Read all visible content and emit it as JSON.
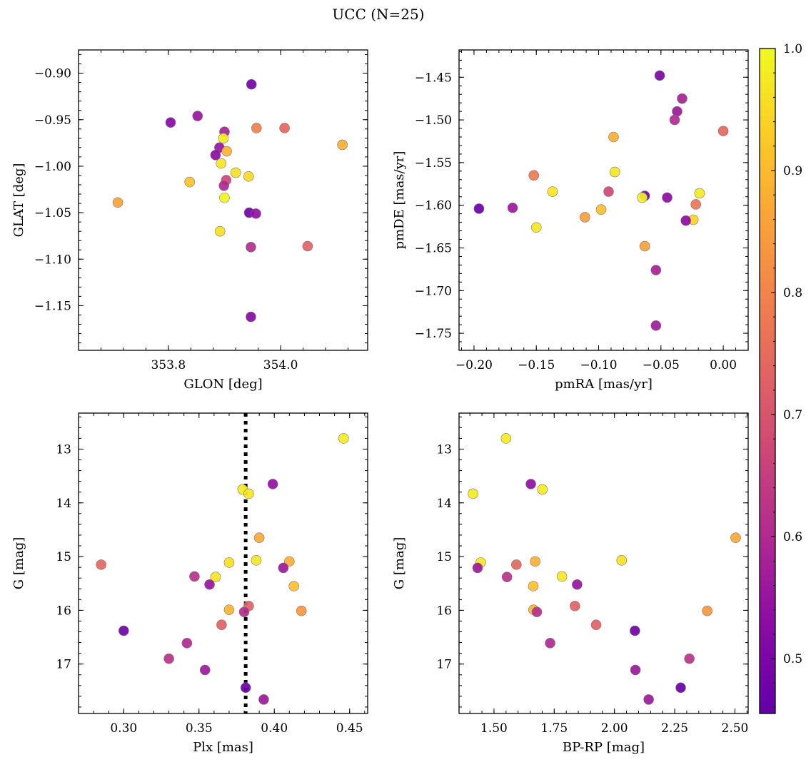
{
  "figure_title": "UCC (N=25)",
  "colorbar": {
    "range": [
      0.455,
      1.0
    ],
    "ticks": [
      0.5,
      0.6,
      0.7,
      0.8,
      0.9,
      1.0
    ],
    "tick_labels": [
      "0.5",
      "0.6",
      "0.7",
      "0.8",
      "0.9",
      "1.0"
    ],
    "colormap": "plasma"
  },
  "chart_data": [
    {
      "type": "scatter",
      "id": "glon-glat",
      "xlabel": "GLON [deg]",
      "ylabel": "GLAT [deg]",
      "xlim": [
        353.64,
        354.155
      ],
      "ylim": [
        -1.198,
        -0.875
      ],
      "invert_y": false,
      "xticks": [
        353.8,
        354.0
      ],
      "xtick_labels": [
        "353.8",
        "354.0"
      ],
      "yticks": [
        -0.9,
        -0.95,
        -1.0,
        -1.05,
        -1.1,
        -1.15
      ],
      "ytick_labels": [
        "−0.90",
        "−0.95",
        "−1.00",
        "−1.05",
        "−1.10",
        "−1.15"
      ],
      "x": [
        353.948,
        353.804,
        353.852,
        353.9,
        353.957,
        354.007,
        354.11,
        353.898,
        353.891,
        353.904,
        353.884,
        353.92,
        353.894,
        353.903,
        353.943,
        353.838,
        353.899,
        353.9,
        353.71,
        353.944,
        353.956,
        353.892,
        353.947,
        354.048,
        353.947
      ],
      "y": [
        -0.912,
        -0.953,
        -0.946,
        -0.963,
        -0.959,
        -0.959,
        -0.977,
        -0.97,
        -0.98,
        -0.984,
        -0.988,
        -1.007,
        -0.997,
        -1.015,
        -1.011,
        -1.017,
        -1.021,
        -1.034,
        -1.039,
        -1.05,
        -1.051,
        -1.07,
        -1.087,
        -1.086,
        -1.162
      ],
      "c": [
        0.48,
        0.52,
        0.55,
        0.58,
        0.79,
        0.74,
        0.88,
        0.98,
        0.55,
        0.89,
        0.53,
        0.96,
        0.97,
        0.67,
        0.95,
        0.92,
        0.6,
        0.99,
        0.86,
        0.48,
        0.54,
        0.96,
        0.61,
        0.73,
        0.52
      ]
    },
    {
      "type": "scatter",
      "id": "pmra-pmde",
      "xlabel": "pmRA [mas/yr]",
      "ylabel": "pmDE [mas/yr]",
      "xlim": [
        -0.212,
        0.02
      ],
      "ylim": [
        -1.77,
        -1.418
      ],
      "invert_y": false,
      "xticks": [
        -0.2,
        -0.15,
        -0.1,
        -0.05,
        0.0
      ],
      "xtick_labels": [
        "−0.20",
        "−0.15",
        "−0.10",
        "−0.05",
        "0.00"
      ],
      "yticks": [
        -1.45,
        -1.5,
        -1.55,
        -1.6,
        -1.65,
        -1.7,
        -1.75
      ],
      "ytick_labels": [
        "−1.45",
        "−1.50",
        "−1.55",
        "−1.60",
        "−1.65",
        "−1.70",
        "−1.75"
      ],
      "x": [
        -0.051,
        -0.033,
        -0.037,
        -0.039,
        0.0,
        -0.088,
        -0.087,
        -0.152,
        -0.137,
        -0.092,
        -0.019,
        -0.063,
        -0.065,
        -0.045,
        -0.196,
        -0.169,
        -0.098,
        -0.022,
        -0.111,
        -0.024,
        -0.03,
        -0.15,
        -0.063,
        -0.054,
        -0.054
      ],
      "y": [
        -1.448,
        -1.475,
        -1.49,
        -1.5,
        -1.513,
        -1.52,
        -1.561,
        -1.565,
        -1.584,
        -1.584,
        -1.586,
        -1.589,
        -1.591,
        -1.591,
        -1.604,
        -1.603,
        -1.605,
        -1.599,
        -1.614,
        -1.617,
        -1.618,
        -1.626,
        -1.648,
        -1.676,
        -1.741
      ],
      "c": [
        0.5,
        0.58,
        0.56,
        0.6,
        0.74,
        0.88,
        0.97,
        0.78,
        0.97,
        0.67,
        0.98,
        0.48,
        0.99,
        0.53,
        0.47,
        0.56,
        0.91,
        0.77,
        0.85,
        0.94,
        0.53,
        0.97,
        0.86,
        0.58,
        0.57
      ]
    },
    {
      "type": "scatter",
      "id": "plx-g",
      "xlabel": "Plx [mas]",
      "ylabel": "G [mag]",
      "xlim": [
        0.27,
        0.462
      ],
      "ylim": [
        12.33,
        17.92
      ],
      "invert_y": true,
      "xticks": [
        0.3,
        0.35,
        0.4,
        0.45
      ],
      "xtick_labels": [
        "0.30",
        "0.35",
        "0.40",
        "0.45"
      ],
      "yticks": [
        13,
        14,
        15,
        16,
        17
      ],
      "ytick_labels": [
        "13",
        "14",
        "15",
        "16",
        "17"
      ],
      "vline": {
        "x": 0.381,
        "style": "dotted"
      },
      "x": [
        0.446,
        0.379,
        0.383,
        0.399,
        0.39,
        0.285,
        0.388,
        0.37,
        0.41,
        0.347,
        0.361,
        0.357,
        0.406,
        0.413,
        0.383,
        0.37,
        0.418,
        0.38,
        0.365,
        0.3,
        0.342,
        0.33,
        0.354,
        0.381,
        0.393
      ],
      "y": [
        12.8,
        13.75,
        13.83,
        13.65,
        14.65,
        15.15,
        15.07,
        15.11,
        15.09,
        15.37,
        15.38,
        15.52,
        15.21,
        15.55,
        15.92,
        15.99,
        16.01,
        16.03,
        16.27,
        16.38,
        16.61,
        16.9,
        17.11,
        17.44,
        17.66
      ],
      "c": [
        0.98,
        0.98,
        0.97,
        0.54,
        0.87,
        0.74,
        0.97,
        0.96,
        0.88,
        0.62,
        0.97,
        0.55,
        0.56,
        0.91,
        0.73,
        0.89,
        0.84,
        0.61,
        0.73,
        0.48,
        0.6,
        0.62,
        0.56,
        0.47,
        0.56
      ]
    },
    {
      "type": "scatter",
      "id": "bprp-g",
      "xlabel": "BP-RP [mag]",
      "ylabel": "G [mag]",
      "xlim": [
        1.355,
        2.555
      ],
      "ylim": [
        12.33,
        17.92
      ],
      "invert_y": true,
      "xticks": [
        1.5,
        1.75,
        2.0,
        2.25,
        2.5
      ],
      "xtick_labels": [
        "1.50",
        "1.75",
        "2.00",
        "2.25",
        "2.50"
      ],
      "yticks": [
        13,
        14,
        15,
        16,
        17
      ],
      "ytick_labels": [
        "13",
        "14",
        "15",
        "16",
        "17"
      ],
      "x": [
        1.55,
        1.413,
        1.653,
        1.701,
        2.503,
        1.445,
        1.671,
        1.593,
        1.432,
        1.554,
        1.782,
        1.663,
        1.845,
        2.03,
        1.836,
        1.664,
        1.678,
        2.385,
        1.924,
        2.085,
        1.733,
        2.311,
        2.087,
        2.275,
        2.142
      ],
      "y": [
        12.8,
        13.83,
        13.65,
        13.75,
        14.65,
        15.11,
        15.09,
        15.15,
        15.21,
        15.38,
        15.37,
        15.55,
        15.52,
        15.07,
        15.92,
        15.99,
        16.03,
        16.01,
        16.27,
        16.38,
        16.61,
        16.9,
        17.11,
        17.44,
        17.66
      ],
      "c": [
        0.98,
        0.98,
        0.54,
        0.98,
        0.87,
        0.97,
        0.88,
        0.74,
        0.56,
        0.62,
        0.97,
        0.91,
        0.55,
        0.96,
        0.73,
        0.89,
        0.61,
        0.84,
        0.73,
        0.48,
        0.6,
        0.62,
        0.56,
        0.47,
        0.56
      ]
    }
  ]
}
